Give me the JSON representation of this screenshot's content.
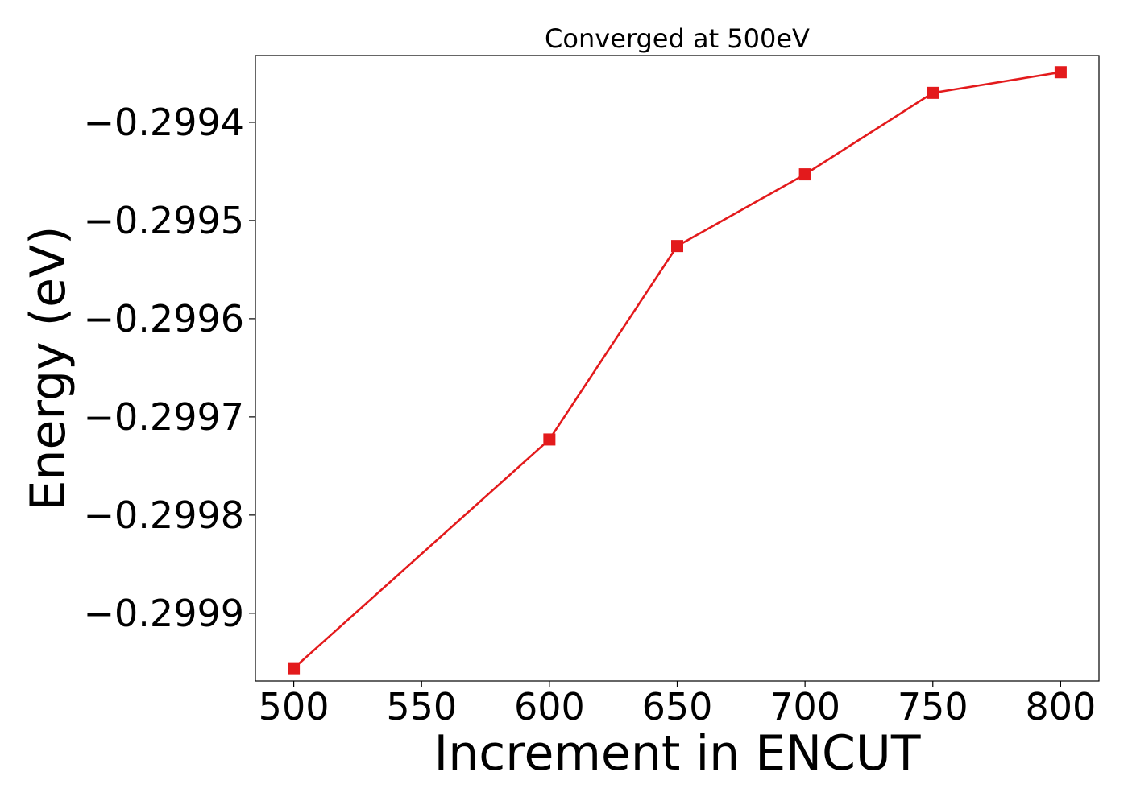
{
  "chart_data": {
    "type": "line",
    "title": "Converged at 500eV",
    "xlabel": "Increment in ENCUT",
    "ylabel": "Energy (eV)",
    "xlim": [
      485,
      815
    ],
    "ylim": [
      -0.299969,
      -0.299332
    ],
    "x_ticks": [
      500,
      550,
      600,
      650,
      700,
      750,
      800
    ],
    "y_ticks": [
      -0.2999,
      -0.2998,
      -0.2997,
      -0.2996,
      -0.2995,
      -0.2994
    ],
    "y_tick_labels": [
      "−0.2999",
      "−0.2998",
      "−0.2997",
      "−0.2996",
      "−0.2995",
      "−0.2994"
    ],
    "grid": false,
    "legend": "none",
    "series": [
      {
        "color": "#e31a1c",
        "marker": "square",
        "x": [
          500,
          600,
          650,
          700,
          750,
          800
        ],
        "y": [
          -0.299956,
          -0.299723,
          -0.299526,
          -0.299453,
          -0.29937,
          -0.299349
        ]
      }
    ]
  }
}
